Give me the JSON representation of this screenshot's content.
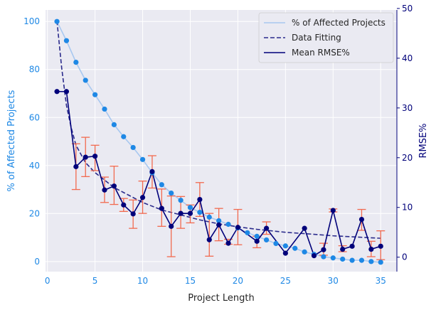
{
  "chart_data": {
    "type": "line",
    "title": "",
    "xlabel": "Project Length",
    "ylabel_left": "% of Affected Projects",
    "ylabel_right": "RMSE%",
    "xlim": [
      -0.2,
      36.7
    ],
    "ylim_left": [
      -4.2,
      104.8
    ],
    "ylim_right": [
      -2.9,
      49.7
    ],
    "xticks": [
      0,
      5,
      10,
      15,
      20,
      25,
      30,
      35
    ],
    "yticks_left": [
      0,
      20,
      40,
      60,
      80,
      100
    ],
    "yticks_right": [
      0,
      10,
      20,
      30,
      40,
      50
    ],
    "grid": true,
    "legend_position": "top-right",
    "legend": [
      "% of Affected Projects",
      "Data Fitting",
      "Mean RMSE%"
    ],
    "colors": {
      "affected_line": "#a8c8f0",
      "affected_points": "#1e88e5",
      "fit": "#2b2b8c",
      "rmse": "#00007a",
      "error_bars": "#f26a4f",
      "plot_bg": "#eaeaf2",
      "grid": "#ffffff"
    },
    "series": [
      {
        "name": "% of Affected Projects",
        "axis": "left",
        "x": [
          1,
          2,
          3,
          4,
          5,
          6,
          7,
          8,
          9,
          10,
          11,
          12,
          13,
          14,
          15,
          16,
          17,
          18,
          19,
          20,
          21,
          22,
          23,
          24,
          25,
          26,
          27,
          28,
          29,
          30,
          31,
          32,
          33,
          34,
          35
        ],
        "values": [
          100,
          92,
          83,
          75.5,
          69.5,
          63.5,
          57,
          52,
          47.5,
          42.5,
          37,
          32,
          28.5,
          25.5,
          22.5,
          20.5,
          18.5,
          17,
          15.5,
          14,
          12,
          10.5,
          9,
          7.5,
          6.5,
          5.5,
          4,
          3,
          2,
          1.5,
          1,
          0.5,
          0.5,
          0,
          -0.3
        ]
      },
      {
        "name": "Data Fitting",
        "axis": "right",
        "x": [
          1,
          1.5,
          2,
          2.5,
          3,
          4,
          5,
          6,
          7,
          8,
          9,
          10,
          12,
          14,
          16,
          18,
          20,
          22,
          25,
          28,
          30,
          32,
          35
        ],
        "values": [
          47.5,
          38,
          30.5,
          26,
          22.5,
          19,
          17,
          15.5,
          14,
          13,
          12,
          11,
          9.5,
          8.5,
          7.5,
          6.7,
          6.1,
          5.6,
          5,
          4.6,
          4.3,
          4.1,
          3.8
        ]
      },
      {
        "name": "Mean RMSE%",
        "axis": "right",
        "x": [
          1,
          2,
          3,
          4,
          5,
          6,
          7,
          8,
          9,
          10,
          11,
          12,
          13,
          14,
          15,
          16,
          17,
          18,
          19,
          20,
          22,
          23,
          25,
          27,
          28,
          29,
          30,
          31,
          32,
          33,
          34,
          35
        ],
        "values": [
          33.3,
          33.3,
          18.2,
          20.1,
          20.3,
          13.5,
          14.3,
          10.5,
          8.7,
          12,
          17.2,
          9.8,
          6.2,
          8.8,
          8.8,
          11.6,
          3.5,
          6.5,
          2.8,
          6,
          3.2,
          5.8,
          0.8,
          5.8,
          0.3,
          1.5,
          9.4,
          1.6,
          2.2,
          7.6,
          1.6,
          2.2
        ]
      }
    ],
    "error_bars": {
      "x": [
        3,
        4,
        5,
        6,
        7,
        8,
        9,
        10,
        11,
        12,
        13,
        14,
        15,
        16,
        17,
        18,
        19,
        20,
        22,
        23,
        29,
        30,
        31,
        33,
        34,
        35
      ],
      "low": [
        13.6,
        16.2,
        17.4,
        11,
        10.6,
        9.2,
        5.8,
        8.8,
        13.9,
        6.2,
        0.1,
        5.8,
        6.9,
        8.2,
        0.2,
        3.3,
        2.6,
        2.5,
        1.9,
        4.6,
        0.4,
        9.1,
        1.1,
        5.4,
        0.1,
        -0.5
      ],
      "high": [
        22.8,
        24.1,
        22.5,
        16.1,
        18.3,
        11.8,
        11.5,
        15.3,
        20.4,
        13.7,
        12.3,
        12.2,
        10.5,
        15,
        8.8,
        9.8,
        3.6,
        9.6,
        4.2,
        7.1,
        2.8,
        9.7,
        2.3,
        9.6,
        3.2,
        5.3
      ]
    }
  }
}
